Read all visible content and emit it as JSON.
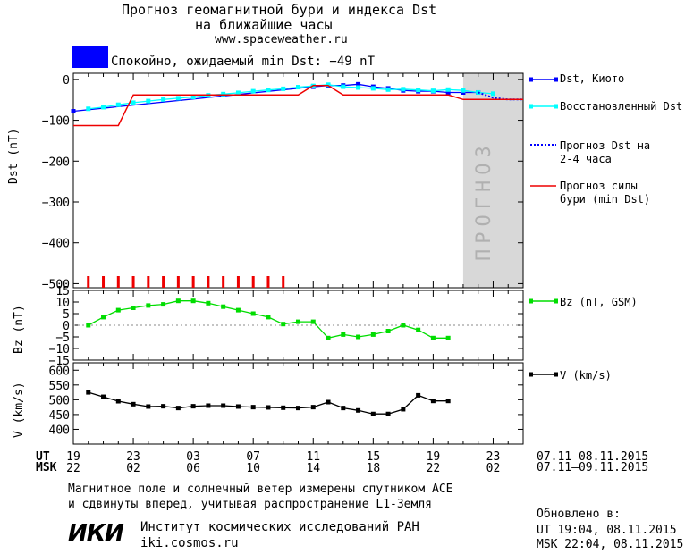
{
  "header": {
    "title_line1": "Прогноз геомагнитной бури и индекса Dst",
    "title_line2": "на ближайшие часы",
    "url": "www.spaceweather.ru",
    "status_text": "Спокойно, ожидаемый min Dst: −49 nT",
    "status_color": "#0000ff"
  },
  "footer": {
    "note_line1": "Магнитное поле и солнечный ветер измерены спутником ACE",
    "note_line2": "и сдвинуты вперед, учитывая распространение L1-Земля",
    "institute": "Институт космических исследований РАН",
    "institute_url": "iki.cosmos.ru",
    "logo_text": "ИКИ",
    "updated_label": "Обновлено в:",
    "updated_ut": "UT   19:04, 08.11.2015",
    "updated_msk": "MSK 22:04, 08.11.2015"
  },
  "chart_data": [
    {
      "type": "line",
      "ylabel": "Dst (nT)",
      "ylim": [
        -510,
        15
      ],
      "yticks": [
        "0",
        "−100",
        "−200",
        "−300",
        "−400",
        "−500"
      ],
      "forecast_label": "ПРОГНОЗ",
      "x_ut_hours": [
        19,
        20,
        21,
        22,
        23,
        24,
        25,
        26,
        27,
        28,
        29,
        30,
        31,
        32,
        33,
        34,
        35,
        36,
        37,
        38,
        39,
        40,
        41,
        42,
        43,
        44,
        45,
        46,
        47,
        48,
        49
      ],
      "series": [
        {
          "name": "Dst, Киото",
          "color": "#0000ff",
          "marker": "square",
          "points": [
            [
              19,
              -78
            ],
            [
              35,
              -18
            ],
            [
              36,
              -15
            ],
            [
              37,
              -15
            ],
            [
              38,
              -12
            ],
            [
              39,
              -18
            ],
            [
              40,
              -22
            ],
            [
              41,
              -27
            ],
            [
              42,
              -29
            ],
            [
              43,
              -29
            ],
            [
              44,
              -32
            ],
            [
              45,
              -32
            ],
            [
              46,
              -32
            ]
          ]
        },
        {
          "name": "Восстановленный Dst",
          "color": "#00ffff",
          "marker": "square",
          "points": [
            [
              20,
              -72
            ],
            [
              21,
              -68
            ],
            [
              22,
              -62
            ],
            [
              23,
              -57
            ],
            [
              24,
              -53
            ],
            [
              25,
              -49
            ],
            [
              26,
              -46
            ],
            [
              27,
              -43
            ],
            [
              28,
              -39
            ],
            [
              29,
              -36
            ],
            [
              30,
              -33
            ],
            [
              31,
              -29
            ],
            [
              32,
              -26
            ],
            [
              33,
              -23
            ],
            [
              34,
              -19
            ],
            [
              35,
              -16
            ],
            [
              36,
              -13
            ],
            [
              37,
              -18
            ],
            [
              38,
              -20
            ],
            [
              39,
              -22
            ],
            [
              40,
              -25
            ],
            [
              41,
              -24
            ],
            [
              42,
              -26
            ],
            [
              43,
              -28
            ],
            [
              44,
              -25
            ],
            [
              45,
              -27
            ],
            [
              46,
              -32
            ],
            [
              47,
              -35
            ]
          ]
        },
        {
          "name": "Прогноз Dst на 2-4 часа",
          "color": "#0000ff",
          "marker": "dotted",
          "points": [
            [
              46,
              -32
            ],
            [
              47,
              -45
            ],
            [
              48,
              -49
            ],
            [
              49,
              -49
            ]
          ]
        },
        {
          "name": "Прогноз силы бури (min Dst)",
          "color": "#ee0000",
          "marker": "step",
          "points": [
            [
              19,
              -113
            ],
            [
              22,
              -113
            ],
            [
              23,
              -38
            ],
            [
              34,
              -38
            ],
            [
              35,
              -15
            ],
            [
              36,
              -15
            ],
            [
              37,
              -38
            ],
            [
              44,
              -38
            ],
            [
              45,
              -49
            ],
            [
              49,
              -49
            ]
          ]
        }
      ],
      "red_ticks_x": [
        20,
        21,
        22,
        23,
        24,
        25,
        26,
        27,
        28,
        29,
        30,
        31,
        32,
        33
      ]
    },
    {
      "type": "line",
      "ylabel": "Bz (nT)",
      "ylim": [
        -15,
        15
      ],
      "yticks": [
        "15",
        "10",
        "5",
        "0",
        "−5",
        "−10",
        "−15"
      ],
      "series": [
        {
          "name": "Bz (nT, GSM)",
          "color": "#00dd00",
          "marker": "square",
          "points": [
            [
              20,
              0
            ],
            [
              21,
              3.5
            ],
            [
              22,
              6.5
            ],
            [
              23,
              7.5
            ],
            [
              24,
              8.5
            ],
            [
              25,
              9
            ],
            [
              26,
              10.5
            ],
            [
              27,
              10.5
            ],
            [
              28,
              9.5
            ],
            [
              29,
              8
            ],
            [
              30,
              6.5
            ],
            [
              31,
              5
            ],
            [
              32,
              3.5
            ],
            [
              33,
              0.5
            ],
            [
              34,
              1.5
            ],
            [
              35,
              1.5
            ],
            [
              36,
              -5.5
            ],
            [
              37,
              -4
            ],
            [
              38,
              -5
            ],
            [
              39,
              -4
            ],
            [
              40,
              -2.5
            ],
            [
              41,
              0
            ],
            [
              42,
              -2
            ],
            [
              43,
              -5.5
            ],
            [
              44,
              -5.5
            ]
          ]
        }
      ]
    },
    {
      "type": "line",
      "ylabel": "V (km/s)",
      "ylim": [
        350,
        625
      ],
      "yticks": [
        "600",
        "550",
        "500",
        "450",
        "400"
      ],
      "series": [
        {
          "name": "V (km/s)",
          "color": "#000000",
          "marker": "square",
          "points": [
            [
              20,
              525
            ],
            [
              21,
              510
            ],
            [
              22,
              495
            ],
            [
              23,
              485
            ],
            [
              24,
              477
            ],
            [
              25,
              478
            ],
            [
              26,
              472
            ],
            [
              27,
              478
            ],
            [
              28,
              480
            ],
            [
              29,
              480
            ],
            [
              30,
              477
            ],
            [
              31,
              475
            ],
            [
              32,
              474
            ],
            [
              33,
              473
            ],
            [
              34,
              472
            ],
            [
              35,
              475
            ],
            [
              36,
              492
            ],
            [
              37,
              472
            ],
            [
              38,
              464
            ],
            [
              39,
              452
            ],
            [
              40,
              452
            ],
            [
              41,
              468
            ],
            [
              42,
              515
            ],
            [
              43,
              496
            ],
            [
              44,
              496
            ]
          ]
        }
      ]
    }
  ],
  "x_axis": {
    "ut_label": "UT",
    "msk_label": "MSK",
    "ut_ticks": [
      "19",
      "23",
      "03",
      "07",
      "11",
      "15",
      "19",
      "23"
    ],
    "msk_ticks": [
      "22",
      "02",
      "06",
      "10",
      "14",
      "18",
      "22",
      "02"
    ],
    "ut_range": "07.11–08.11.2015",
    "msk_range": "07.11–09.11.2015"
  }
}
